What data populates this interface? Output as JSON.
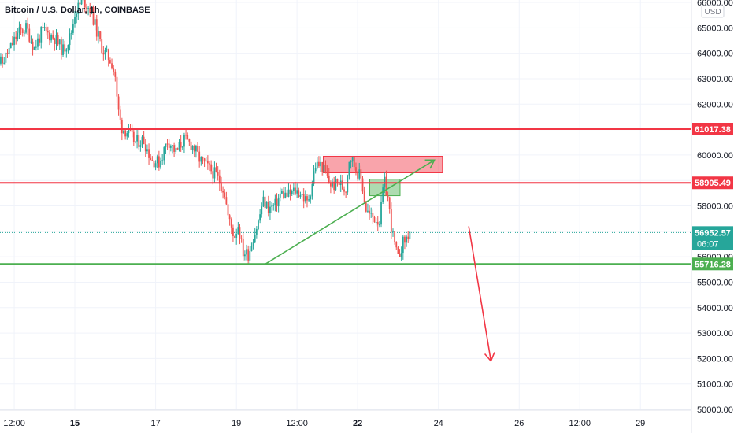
{
  "header": {
    "title": "Bitcoin / U.S. Dollar, 1h, COINBASE"
  },
  "currency_badge": "USD",
  "countdown": "06:07",
  "colors": {
    "up": "#26a69a",
    "down": "#ef5350",
    "resistance": "#f23645",
    "support": "#4caf50",
    "current": "#26a69a",
    "grid": "#f0f3fa",
    "axis_text": "#131722"
  },
  "chart_data": {
    "type": "candlestick",
    "title": "Bitcoin / U.S. Dollar, 1h, COINBASE",
    "ylim": [
      50000,
      66000
    ],
    "y_ticks": [
      50000,
      51000,
      52000,
      53000,
      54000,
      55000,
      56000,
      57000,
      58000,
      59000,
      60000,
      61000,
      62000,
      63000,
      64000,
      65000,
      66000
    ],
    "y_tick_labels": [
      "50000.00",
      "51000.00",
      "52000.00",
      "53000.00",
      "54000.00",
      "55000.00",
      "56000.00",
      "57000.00",
      "58000.00",
      "59000.00",
      "60000.00",
      "61000.00",
      "62000.00",
      "63000.00",
      "64000.00",
      "65000.00",
      "66000.00"
    ],
    "x_labels": [
      {
        "label": "12:00",
        "day": 13.5,
        "bold": false
      },
      {
        "label": "15",
        "day": 15.0,
        "bold": true
      },
      {
        "label": "17",
        "day": 17.0,
        "bold": false
      },
      {
        "label": "19",
        "day": 19.0,
        "bold": false
      },
      {
        "label": "12:00",
        "day": 20.5,
        "bold": false
      },
      {
        "label": "22",
        "day": 22.0,
        "bold": true
      },
      {
        "label": "24",
        "day": 24.0,
        "bold": false
      },
      {
        "label": "26",
        "day": 26.0,
        "bold": false
      },
      {
        "label": "12:00",
        "day": 27.5,
        "bold": false
      },
      {
        "label": "29",
        "day": 29.0,
        "bold": false
      }
    ],
    "price_path": [
      [
        13.0,
        63800
      ],
      [
        13.2,
        63600
      ],
      [
        13.4,
        64200
      ],
      [
        13.6,
        64800
      ],
      [
        13.8,
        65000
      ],
      [
        14.0,
        64200
      ],
      [
        14.2,
        64900
      ],
      [
        14.5,
        64600
      ],
      [
        14.7,
        64100
      ],
      [
        14.9,
        64700
      ],
      [
        15.0,
        65600
      ],
      [
        15.2,
        66100
      ],
      [
        15.4,
        65700
      ],
      [
        15.55,
        64800
      ],
      [
        15.7,
        64100
      ],
      [
        15.9,
        63700
      ],
      [
        16.0,
        63100
      ],
      [
        16.05,
        62000
      ],
      [
        16.15,
        61100
      ],
      [
        16.3,
        60900
      ],
      [
        16.5,
        60500
      ],
      [
        16.7,
        60600
      ],
      [
        16.9,
        59800
      ],
      [
        17.1,
        59700
      ],
      [
        17.3,
        60600
      ],
      [
        17.5,
        60100
      ],
      [
        17.7,
        60600
      ],
      [
        17.9,
        60400
      ],
      [
        18.1,
        59800
      ],
      [
        18.3,
        59500
      ],
      [
        18.5,
        59200
      ],
      [
        18.7,
        58600
      ],
      [
        18.8,
        57500
      ],
      [
        18.95,
        56800
      ],
      [
        19.05,
        57300
      ],
      [
        19.15,
        56200
      ],
      [
        19.3,
        56100
      ],
      [
        19.4,
        56700
      ],
      [
        19.55,
        57400
      ],
      [
        19.65,
        58200
      ],
      [
        19.8,
        57900
      ],
      [
        19.95,
        58000
      ],
      [
        20.1,
        58500
      ],
      [
        20.25,
        58400
      ],
      [
        20.45,
        58600
      ],
      [
        20.6,
        58500
      ],
      [
        20.75,
        58100
      ],
      [
        20.85,
        58700
      ],
      [
        20.95,
        59600
      ],
      [
        21.1,
        59600
      ],
      [
        21.2,
        59300
      ],
      [
        21.3,
        58900
      ],
      [
        21.4,
        58800
      ],
      [
        21.55,
        58900
      ],
      [
        21.7,
        58600
      ],
      [
        21.8,
        60000
      ],
      [
        21.95,
        59500
      ],
      [
        22.1,
        59000
      ],
      [
        22.2,
        57900
      ],
      [
        22.3,
        57600
      ],
      [
        22.45,
        57500
      ],
      [
        22.55,
        57400
      ],
      [
        22.65,
        59000
      ],
      [
        22.75,
        58300
      ],
      [
        22.85,
        57000
      ],
      [
        22.95,
        56200
      ],
      [
        23.0,
        55900
      ],
      [
        23.1,
        56500
      ],
      [
        23.2,
        56700
      ],
      [
        23.3,
        57000
      ]
    ],
    "trend_lines": [
      {
        "name": "",
        "color": "resistance",
        "price": 61017.38,
        "label": "61017.38"
      },
      {
        "name": "",
        "color": "resistance",
        "price": 58905.49,
        "label": "58905.49"
      },
      {
        "name": "",
        "color": "support",
        "price": 55716.28,
        "label": "55716.28"
      }
    ],
    "current_price": {
      "price": 56952.57,
      "label": "56952.57"
    },
    "annotations": [
      {
        "kind": "rect",
        "fill": "resistance",
        "x0": 21.15,
        "x1": 24.1,
        "y0": 59300,
        "y1": 59950
      },
      {
        "kind": "rect",
        "fill": "support",
        "x0": 22.3,
        "x1": 23.05,
        "y0": 58400,
        "y1": 59050
      },
      {
        "kind": "arrow",
        "color": "support",
        "x0": 19.7,
        "y0": 55700,
        "x1": 23.9,
        "y1": 59800
      },
      {
        "kind": "arrow",
        "color": "resistance",
        "x0": 24.75,
        "y0": 57200,
        "x1": 25.3,
        "y1": 51900
      }
    ]
  }
}
